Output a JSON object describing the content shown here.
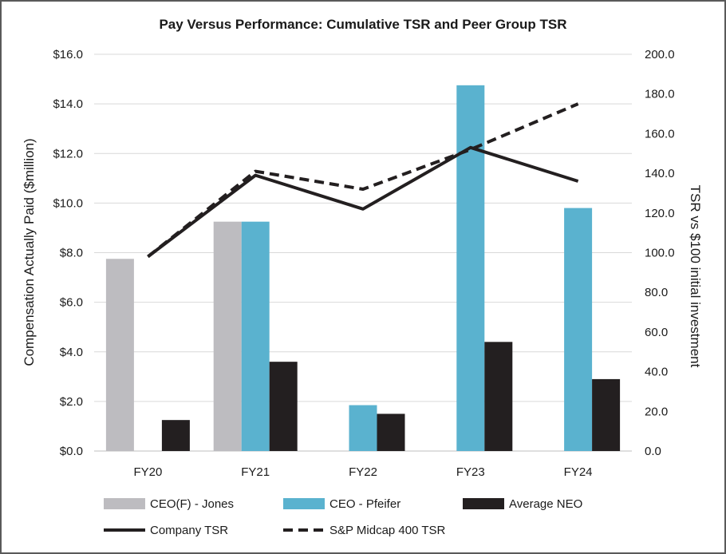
{
  "chart_data": {
    "type": "bar",
    "title": "Pay Versus Performance: Cumulative TSR and Peer Group TSR",
    "categories": [
      "FY20",
      "FY21",
      "FY22",
      "FY23",
      "FY24"
    ],
    "ylabel": "Compensation Actually Paid ($million)",
    "y2label": "TSR vs $100 initial investment",
    "ylim": [
      0,
      16
    ],
    "y2lim": [
      0,
      200
    ],
    "yticks": [
      "$0.0",
      "$2.0",
      "$4.0",
      "$6.0",
      "$8.0",
      "$10.0",
      "$12.0",
      "$14.0",
      "$16.0"
    ],
    "y2ticks": [
      "0.0",
      "20.0",
      "40.0",
      "60.0",
      "80.0",
      "100.0",
      "120.0",
      "140.0",
      "160.0",
      "180.0",
      "200.0"
    ],
    "grid": true,
    "legend_position": "bottom",
    "bar_series": [
      {
        "name": "CEO(F) - Jones",
        "color": "#bdbcc0",
        "values": [
          7.75,
          9.25,
          null,
          null,
          null
        ]
      },
      {
        "name": "CEO - Pfeifer",
        "color": "#5ab2cf",
        "values": [
          null,
          9.25,
          1.85,
          14.75,
          9.8
        ]
      },
      {
        "name": "Average NEO",
        "color": "#231f20",
        "values": [
          1.25,
          3.6,
          1.5,
          4.4,
          2.9
        ]
      }
    ],
    "line_series": [
      {
        "name": "Company TSR",
        "color": "#231f20",
        "dash": "solid",
        "axis": "secondary",
        "values": [
          98,
          139,
          122,
          153,
          136
        ]
      },
      {
        "name": "S&P Midcap 400 TSR",
        "color": "#231f20",
        "dash": "dashed",
        "axis": "secondary",
        "values": [
          98,
          141,
          132,
          152,
          175
        ]
      }
    ]
  }
}
